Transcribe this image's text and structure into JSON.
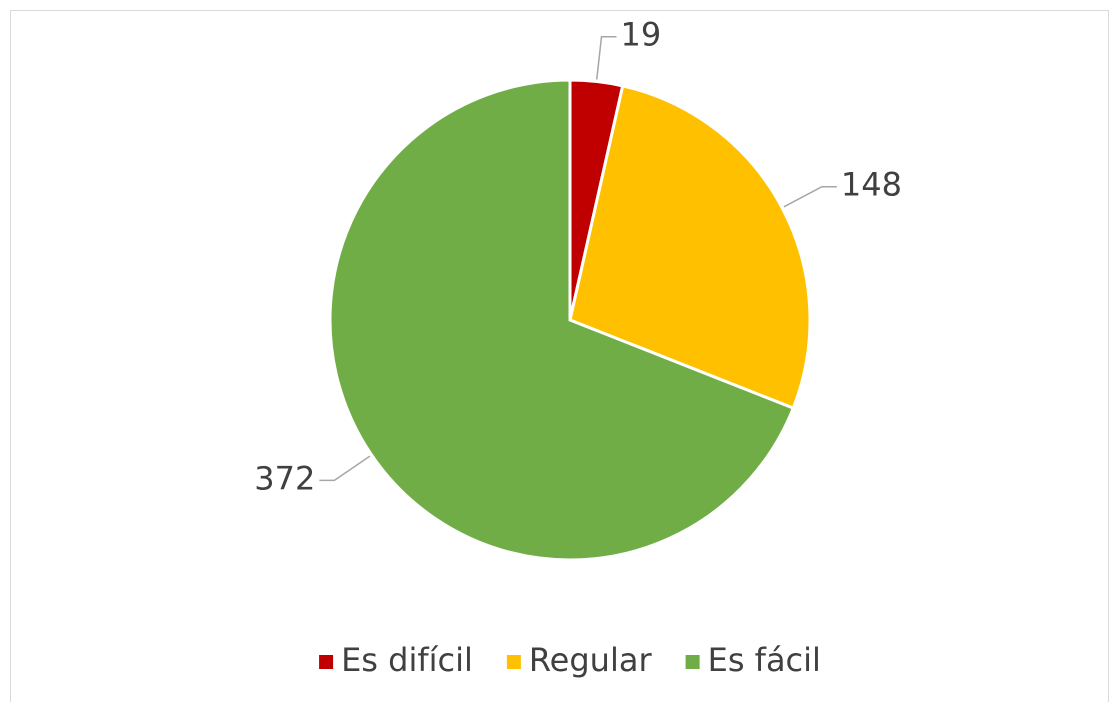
{
  "chart_data": {
    "type": "pie",
    "categories": [
      "Es difícil",
      "Regular",
      "Es fácil"
    ],
    "values": [
      19,
      148,
      372
    ],
    "colors": [
      "#c00000",
      "#ffc000",
      "#70ad47"
    ],
    "legend": "bottom"
  }
}
